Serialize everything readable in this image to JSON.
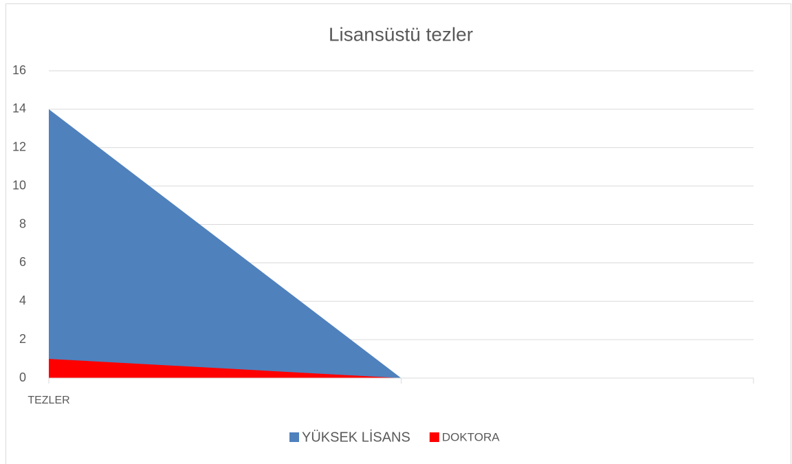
{
  "chart_data": {
    "type": "area",
    "title": "Lisansüstü tezler",
    "categories": [
      "TEZLER",
      null,
      null
    ],
    "series": [
      {
        "name": "YÜKSEK LİSANS",
        "color": "#4f81bd",
        "values": [
          14,
          0,
          0
        ]
      },
      {
        "name": "DOKTORA",
        "color": "#ff0000",
        "values": [
          1,
          0,
          0
        ]
      }
    ],
    "ylim": [
      0,
      16
    ],
    "yticks": [
      0,
      2,
      4,
      6,
      8,
      10,
      12,
      14,
      16
    ],
    "grid": true,
    "legend": "bottom"
  }
}
